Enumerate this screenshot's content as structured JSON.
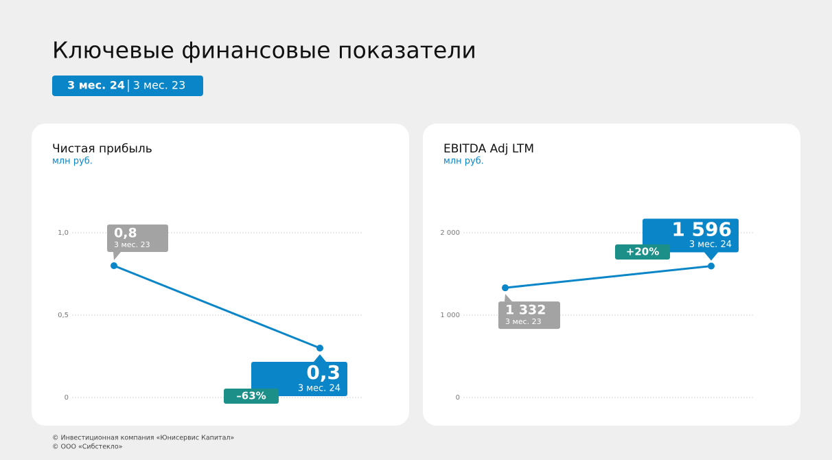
{
  "title": "Ключевые финансовые показатели",
  "periods": {
    "active": "3 мес. 24",
    "inactive": "3 мес. 23"
  },
  "chart_data": [
    {
      "type": "line",
      "title": "Чистая прибыль",
      "subtitle": "млн руб.",
      "categories": [
        "3 мес. 23",
        "3 мес. 24"
      ],
      "values": [
        0.8,
        0.3
      ],
      "value_labels": [
        "0,8",
        "0,3"
      ],
      "annotation": "–63%",
      "color": "#0a85c7",
      "past_color": "#a3a3a3",
      "badge_color": "#1b8f88",
      "ylim": [
        0,
        1
      ],
      "yticks": [
        0,
        {
          "value": 0.5,
          "label": "0,5"
        },
        {
          "value": 1,
          "label": "1,0"
        }
      ],
      "grid": true
    },
    {
      "type": "line",
      "title": "EBITDA Adj LTM",
      "subtitle": "млн руб.",
      "categories": [
        "3 мес. 23",
        "3 мес. 24"
      ],
      "values": [
        1332,
        1596
      ],
      "value_labels": [
        "1 332",
        "1 596"
      ],
      "annotation": "+20%",
      "color": "#0a85c7",
      "past_color": "#a3a3a3",
      "badge_color": "#1b8f88",
      "ylim": [
        0,
        2000
      ],
      "yticks": [
        0,
        {
          "value": 1000,
          "label": "1 000"
        },
        {
          "value": 2000,
          "label": "2 000"
        }
      ],
      "grid": true
    }
  ],
  "footnotes": [
    "© Инвестиционная компания «Юнисервис Капитал»",
    "© ООО «Сибстекло»"
  ]
}
